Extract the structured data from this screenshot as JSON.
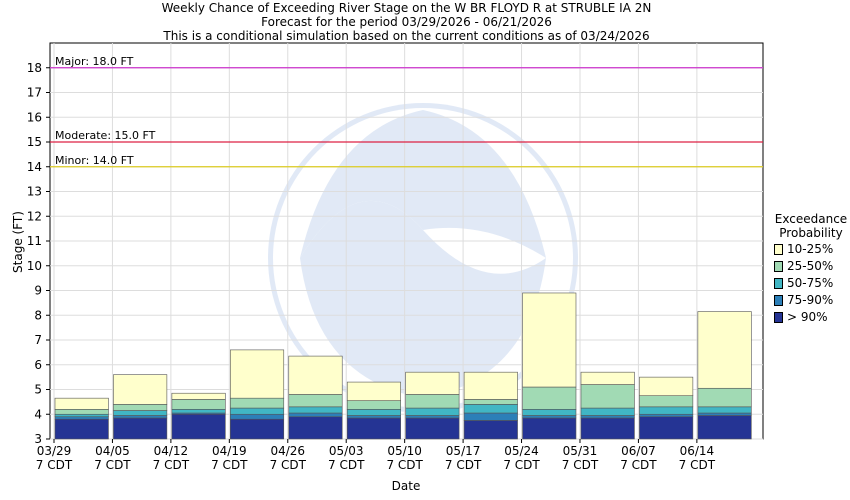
{
  "chart_data": {
    "type": "bar",
    "stacked": true,
    "title": "Weekly Chance of Exceeding River Stage on the W BR FLOYD R at STRUBLE IA 2N",
    "subtitle_lines": [
      "Forecast for the period 03/29/2026 - 06/21/2026",
      "This is a conditional simulation based on the current conditions as of 03/24/2026"
    ],
    "xlabel": "Date",
    "ylabel": "Stage (FT)",
    "ylim": [
      3,
      19
    ],
    "yticks": [
      3,
      4,
      5,
      6,
      7,
      8,
      9,
      10,
      11,
      12,
      13,
      14,
      15,
      16,
      17,
      18
    ],
    "grid": true,
    "x_ticks": [
      {
        "date": "03/29",
        "tz": "7 CDT"
      },
      {
        "date": "04/05",
        "tz": "7 CDT"
      },
      {
        "date": "04/12",
        "tz": "7 CDT"
      },
      {
        "date": "04/19",
        "tz": "7 CDT"
      },
      {
        "date": "04/26",
        "tz": "7 CDT"
      },
      {
        "date": "05/03",
        "tz": "7 CDT"
      },
      {
        "date": "05/10",
        "tz": "7 CDT"
      },
      {
        "date": "05/17",
        "tz": "7 CDT"
      },
      {
        "date": "05/24",
        "tz": "7 CDT"
      },
      {
        "date": "05/31",
        "tz": "7 CDT"
      },
      {
        "date": "06/07",
        "tz": "7 CDT"
      },
      {
        "date": "06/14",
        "tz": "7 CDT"
      }
    ],
    "thresholds": [
      {
        "label": "Major: 18.0 FT",
        "value": 18.0,
        "color": "#cc33cc"
      },
      {
        "label": "Moderate: 15.0 FT",
        "value": 15.0,
        "color": "#dd2244"
      },
      {
        "label": "Minor: 14.0 FT",
        "value": 14.0,
        "color": "#ddcc22"
      }
    ],
    "legend": {
      "title_lines": [
        "Exceedance",
        "Probability"
      ],
      "placement": "right",
      "items": [
        {
          "label": "10-25%",
          "color": "#ffffcc"
        },
        {
          "label": "25-50%",
          "color": "#a1dab4"
        },
        {
          "label": "50-75%",
          "color": "#41b6c4"
        },
        {
          "label": "75-90%",
          "color": "#2c7fb8"
        },
        {
          "label": "> 90%",
          "color": "#253494"
        }
      ]
    },
    "series_colors": [
      "#253494",
      "#2c7fb8",
      "#41b6c4",
      "#a1dab4",
      "#ffffcc"
    ],
    "weeks": [
      {
        "levels": [
          3.8,
          3.9,
          4.0,
          4.2,
          4.65
        ]
      },
      {
        "levels": [
          3.85,
          3.95,
          4.15,
          4.4,
          5.6
        ]
      },
      {
        "levels": [
          4.0,
          4.05,
          4.2,
          4.6,
          4.85
        ]
      },
      {
        "levels": [
          3.8,
          4.0,
          4.25,
          4.65,
          6.6
        ]
      },
      {
        "levels": [
          3.9,
          4.05,
          4.3,
          4.8,
          6.35
        ]
      },
      {
        "levels": [
          3.85,
          3.95,
          4.2,
          4.55,
          5.3
        ]
      },
      {
        "levels": [
          3.85,
          3.95,
          4.25,
          4.8,
          5.7
        ]
      },
      {
        "levels": [
          3.75,
          4.05,
          4.4,
          4.6,
          5.7
        ]
      },
      {
        "levels": [
          3.85,
          3.95,
          4.2,
          5.1,
          8.9
        ]
      },
      {
        "levels": [
          3.85,
          3.95,
          4.25,
          5.2,
          5.7
        ]
      },
      {
        "levels": [
          3.9,
          4.0,
          4.3,
          4.75,
          5.5
        ]
      },
      {
        "levels": [
          3.95,
          4.05,
          4.3,
          5.05,
          8.15
        ]
      }
    ]
  }
}
